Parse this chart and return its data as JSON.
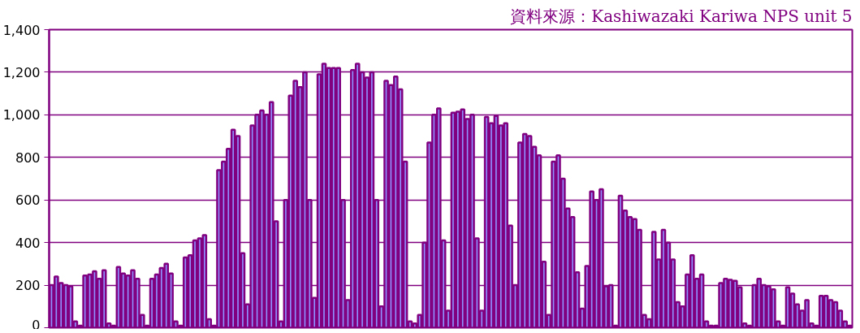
{
  "chart_data": {
    "type": "bar",
    "annotations": [
      "資料來源：Kashiwazaki Kariwa NPS unit 5"
    ],
    "categories": [
      null,
      null,
      null,
      null,
      null,
      null,
      null,
      null,
      null,
      null,
      null,
      null,
      null,
      null,
      null,
      null,
      null,
      null,
      null,
      null,
      null,
      null,
      null,
      null,
      null,
      null,
      null,
      null,
      null,
      null,
      null,
      null,
      null,
      null,
      null,
      null,
      null,
      null,
      null,
      null,
      null,
      null,
      null,
      null,
      null,
      null,
      null,
      null,
      null,
      null,
      null,
      null,
      null,
      null,
      null,
      null,
      null,
      null,
      null,
      null,
      null,
      null,
      null,
      null,
      null,
      null,
      null,
      null,
      null,
      null,
      null,
      null,
      null,
      null,
      null,
      null,
      null,
      null,
      null,
      null,
      null,
      null,
      null,
      null,
      null,
      null,
      null,
      null,
      null,
      null,
      null,
      null,
      null,
      null,
      null,
      null,
      null,
      null,
      null,
      null,
      null,
      null,
      null,
      null,
      null,
      null,
      null,
      null,
      null,
      null,
      null,
      null,
      null,
      null,
      null,
      null,
      null,
      null,
      null,
      null,
      null,
      null,
      null,
      null,
      null,
      null,
      null,
      null,
      null,
      null,
      null,
      null,
      null,
      null,
      null,
      null,
      null,
      null,
      null,
      null,
      null,
      null,
      null,
      null,
      null,
      null,
      null,
      null,
      null,
      null,
      null,
      null,
      null,
      null,
      null,
      null,
      null,
      null,
      null,
      null,
      null,
      null,
      null,
      null,
      null,
      null,
      null,
      null
    ],
    "values": [
      200,
      240,
      210,
      200,
      195,
      30,
      10,
      245,
      250,
      265,
      230,
      270,
      20,
      10,
      285,
      255,
      245,
      270,
      230,
      60,
      10,
      230,
      250,
      280,
      300,
      255,
      30,
      10,
      330,
      340,
      410,
      420,
      435,
      40,
      10,
      740,
      780,
      840,
      930,
      900,
      350,
      110,
      950,
      1000,
      1020,
      1000,
      1060,
      500,
      30,
      600,
      1090,
      1160,
      1130,
      1200,
      600,
      140,
      1190,
      1240,
      1220,
      1220,
      1220,
      600,
      130,
      1210,
      1240,
      1200,
      1175,
      1200,
      600,
      100,
      1160,
      1140,
      1180,
      1120,
      780,
      30,
      20,
      60,
      400,
      870,
      1000,
      1030,
      410,
      80,
      1010,
      1015,
      1025,
      980,
      1000,
      420,
      80,
      990,
      960,
      995,
      950,
      960,
      480,
      200,
      870,
      910,
      900,
      850,
      810,
      310,
      60,
      780,
      810,
      700,
      560,
      520,
      260,
      90,
      290,
      640,
      600,
      650,
      195,
      200,
      10,
      620,
      550,
      520,
      510,
      460,
      60,
      40,
      450,
      320,
      460,
      400,
      320,
      120,
      100,
      250,
      340,
      230,
      250,
      30,
      10,
      10,
      210,
      230,
      225,
      220,
      190,
      20,
      10,
      200,
      230,
      200,
      195,
      180,
      30,
      10,
      190,
      160,
      110,
      80,
      130,
      20,
      10,
      150,
      150,
      130,
      120,
      80,
      30,
      10
    ],
    "color": "#800080",
    "ylim": [
      0,
      1400
    ],
    "yticks": [
      0,
      200,
      400,
      600,
      800,
      {
        "value": 1000,
        "label": "1,000"
      },
      {
        "value": 1200,
        "label": "1,200"
      },
      {
        "value": 1400,
        "label": "1,400"
      }
    ],
    "grid": "y",
    "tick_labels": "y"
  }
}
